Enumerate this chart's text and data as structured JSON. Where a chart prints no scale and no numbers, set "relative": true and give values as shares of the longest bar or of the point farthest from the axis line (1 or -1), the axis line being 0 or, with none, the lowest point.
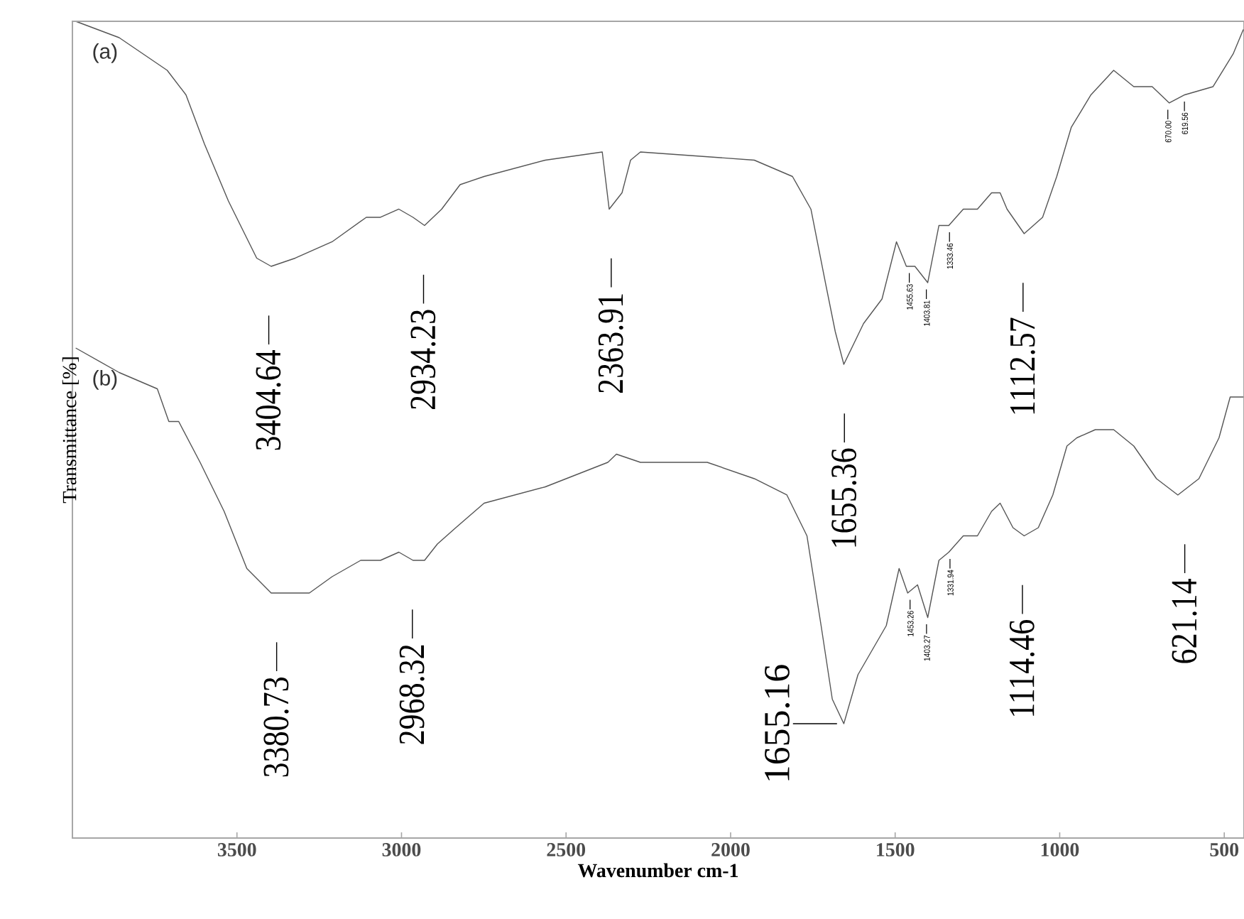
{
  "chart_data": {
    "type": "line",
    "relative": true,
    "xlabel": "Wavenumber cm-1",
    "ylabel": "Transmittance [%]",
    "xlim": [
      4000,
      440
    ],
    "xticks": [
      3500,
      3000,
      2500,
      2000,
      1500,
      1000,
      500
    ],
    "series": [
      {
        "name": "(a)",
        "color": "#555555",
        "x": [
          3990,
          3858,
          3712,
          3655,
          3599,
          3526,
          3440,
          3396,
          3323,
          3211,
          3107,
          3064,
          3008,
          2965,
          2930,
          2878,
          2822,
          2749,
          2563,
          2390,
          2369,
          2330,
          2304,
          2274,
          1928,
          1812,
          1756,
          1712,
          1682,
          1656,
          1596,
          1540,
          1496,
          1466,
          1440,
          1401,
          1367,
          1337,
          1293,
          1250,
          1207,
          1181,
          1160,
          1108,
          1052,
          1009,
          965,
          905,
          836,
          775,
          719,
          667,
          620,
          534,
          473,
          442
        ],
        "values": [
          1.0,
          0.98,
          0.94,
          0.91,
          0.85,
          0.78,
          0.71,
          0.7,
          0.71,
          0.73,
          0.76,
          0.76,
          0.77,
          0.76,
          0.75,
          0.77,
          0.8,
          0.81,
          0.83,
          0.84,
          0.77,
          0.79,
          0.83,
          0.84,
          0.83,
          0.81,
          0.77,
          0.68,
          0.62,
          0.58,
          0.63,
          0.66,
          0.73,
          0.7,
          0.7,
          0.68,
          0.75,
          0.75,
          0.77,
          0.77,
          0.79,
          0.79,
          0.77,
          0.74,
          0.76,
          0.81,
          0.87,
          0.91,
          0.94,
          0.92,
          0.92,
          0.9,
          0.91,
          0.92,
          0.96,
          0.99
        ]
      },
      {
        "name": "(b)",
        "color": "#555555",
        "x": [
          3990,
          3858,
          3742,
          3707,
          3677,
          3612,
          3539,
          3470,
          3396,
          3280,
          3211,
          3124,
          3064,
          3008,
          2965,
          2930,
          2891,
          2835,
          2749,
          2563,
          2373,
          2347,
          2274,
          2071,
          1928,
          1829,
          1768,
          1725,
          1691,
          1656,
          1613,
          1570,
          1527,
          1488,
          1462,
          1432,
          1401,
          1367,
          1337,
          1293,
          1250,
          1207,
          1181,
          1142,
          1108,
          1065,
          1021,
          978,
          948,
          892,
          836,
          775,
          706,
          641,
          577,
          516,
          482,
          442
        ],
        "values": [
          0.6,
          0.57,
          0.55,
          0.51,
          0.51,
          0.46,
          0.4,
          0.33,
          0.3,
          0.3,
          0.32,
          0.34,
          0.34,
          0.35,
          0.34,
          0.34,
          0.36,
          0.38,
          0.41,
          0.43,
          0.46,
          0.47,
          0.46,
          0.46,
          0.44,
          0.42,
          0.37,
          0.26,
          0.17,
          0.14,
          0.2,
          0.23,
          0.26,
          0.33,
          0.3,
          0.31,
          0.27,
          0.34,
          0.35,
          0.37,
          0.37,
          0.4,
          0.41,
          0.38,
          0.37,
          0.38,
          0.42,
          0.48,
          0.49,
          0.5,
          0.5,
          0.48,
          0.44,
          0.42,
          0.44,
          0.49,
          0.54,
          0.54
        ]
      }
    ],
    "annotations": [
      {
        "text": "3404.64",
        "x": 3404.64,
        "y": 0.7
      },
      {
        "text": "2934.23",
        "x": 2934.23,
        "y": 0.75
      },
      {
        "text": "2363.91",
        "x": 2363.91,
        "y": 0.77
      },
      {
        "text": "1655.36",
        "x": 1655.36,
        "y": 0.58
      },
      {
        "text": "1455.63",
        "x": 1455.63,
        "y": 0.7
      },
      {
        "text": "1403.81",
        "x": 1403.81,
        "y": 0.68
      },
      {
        "text": "1333.46",
        "x": 1333.46,
        "y": 0.75
      },
      {
        "text": "1112.57",
        "x": 1112.57,
        "y": 0.74
      },
      {
        "text": "670.00",
        "x": 670.0,
        "y": 0.9
      },
      {
        "text": "619.56",
        "x": 619.56,
        "y": 0.91
      },
      {
        "text": "3380.73",
        "x": 3380.73,
        "y": 0.3
      },
      {
        "text": "2968.32",
        "x": 2968.32,
        "y": 0.34
      },
      {
        "text": "1655.16",
        "x": 1655.16,
        "y": 0.14
      },
      {
        "text": "1453.26",
        "x": 1453.26,
        "y": 0.3
      },
      {
        "text": "1403.27",
        "x": 1403.27,
        "y": 0.27
      },
      {
        "text": "1331.94",
        "x": 1331.94,
        "y": 0.35
      },
      {
        "text": "1114.46",
        "x": 1114.46,
        "y": 0.37
      },
      {
        "text": "621.14",
        "x": 621.14,
        "y": 0.42
      }
    ]
  }
}
